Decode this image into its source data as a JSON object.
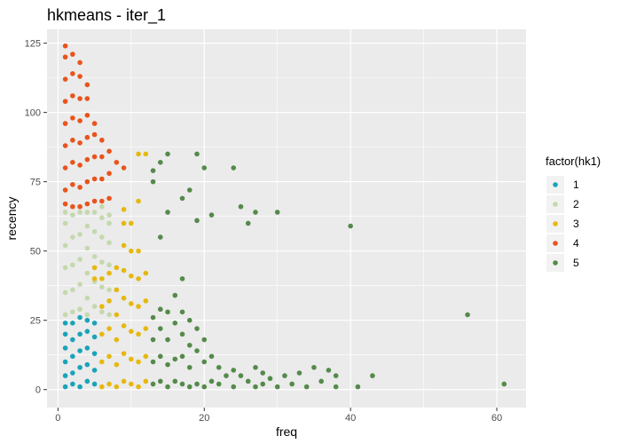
{
  "chart_data": {
    "type": "scatter",
    "title": "hkmeans - iter_1",
    "xlabel": "freq",
    "ylabel": "recency",
    "xlim": [
      -1.5,
      64.0
    ],
    "ylim": [
      -6.5,
      130.0
    ],
    "x_ticks": [
      0,
      20,
      40,
      60
    ],
    "y_ticks": [
      0,
      25,
      50,
      75,
      100,
      125
    ],
    "grid": true,
    "panel_background": "#ebebeb",
    "legend": {
      "title": "factor(hk1)",
      "position": "right"
    },
    "series": [
      {
        "name": "1",
        "color": "#19a3b8",
        "points": [
          [
            1,
            1
          ],
          [
            1,
            5
          ],
          [
            1,
            10
          ],
          [
            1,
            15
          ],
          [
            1,
            20
          ],
          [
            1,
            24
          ],
          [
            2,
            2
          ],
          [
            2,
            6
          ],
          [
            2,
            12
          ],
          [
            2,
            18
          ],
          [
            2,
            24
          ],
          [
            3,
            1
          ],
          [
            3,
            8
          ],
          [
            3,
            14
          ],
          [
            3,
            20
          ],
          [
            3,
            26
          ],
          [
            4,
            3
          ],
          [
            4,
            9
          ],
          [
            4,
            15
          ],
          [
            4,
            21
          ],
          [
            4,
            25
          ],
          [
            5,
            2
          ],
          [
            5,
            7
          ],
          [
            5,
            13
          ],
          [
            5,
            19
          ],
          [
            5,
            24
          ]
        ]
      },
      {
        "name": "2",
        "color": "#c4d8ad",
        "points": [
          [
            1,
            27
          ],
          [
            1,
            35
          ],
          [
            1,
            44
          ],
          [
            1,
            52
          ],
          [
            1,
            60
          ],
          [
            1,
            64
          ],
          [
            2,
            28
          ],
          [
            2,
            36
          ],
          [
            2,
            45
          ],
          [
            2,
            55
          ],
          [
            2,
            63
          ],
          [
            3,
            29
          ],
          [
            3,
            38
          ],
          [
            3,
            47
          ],
          [
            3,
            56
          ],
          [
            3,
            64
          ],
          [
            4,
            27
          ],
          [
            4,
            33
          ],
          [
            4,
            42
          ],
          [
            4,
            51
          ],
          [
            4,
            59
          ],
          [
            4,
            64
          ],
          [
            5,
            30
          ],
          [
            5,
            39
          ],
          [
            5,
            48
          ],
          [
            5,
            57
          ],
          [
            5,
            64
          ],
          [
            6,
            28
          ],
          [
            6,
            37
          ],
          [
            6,
            46
          ],
          [
            6,
            55
          ],
          [
            6,
            62
          ],
          [
            6,
            66
          ],
          [
            7,
            27
          ],
          [
            7,
            36
          ],
          [
            7,
            45
          ],
          [
            7,
            53
          ],
          [
            7,
            60
          ],
          [
            7,
            63
          ]
        ]
      },
      {
        "name": "3",
        "color": "#e6b80f",
        "points": [
          [
            5,
            40
          ],
          [
            5,
            44
          ],
          [
            6,
            1
          ],
          [
            6,
            10
          ],
          [
            6,
            20
          ],
          [
            6,
            30
          ],
          [
            6,
            40
          ],
          [
            7,
            2
          ],
          [
            7,
            12
          ],
          [
            7,
            22
          ],
          [
            7,
            32
          ],
          [
            7,
            42
          ],
          [
            8,
            1
          ],
          [
            8,
            9
          ],
          [
            8,
            18
          ],
          [
            8,
            27
          ],
          [
            8,
            36
          ],
          [
            8,
            44
          ],
          [
            9,
            3
          ],
          [
            9,
            13
          ],
          [
            9,
            23
          ],
          [
            9,
            33
          ],
          [
            9,
            43
          ],
          [
            9,
            52
          ],
          [
            9,
            60
          ],
          [
            9,
            65
          ],
          [
            10,
            2
          ],
          [
            10,
            11
          ],
          [
            10,
            21
          ],
          [
            10,
            31
          ],
          [
            10,
            41
          ],
          [
            10,
            50
          ],
          [
            10,
            60
          ],
          [
            11,
            1
          ],
          [
            11,
            10
          ],
          [
            11,
            20
          ],
          [
            11,
            30
          ],
          [
            11,
            40
          ],
          [
            11,
            50
          ],
          [
            11,
            68
          ],
          [
            11,
            85
          ],
          [
            12,
            3
          ],
          [
            12,
            12
          ],
          [
            12,
            22
          ],
          [
            12,
            32
          ],
          [
            12,
            42
          ],
          [
            12,
            85
          ]
        ]
      },
      {
        "name": "4",
        "color": "#e8541c",
        "points": [
          [
            1,
            67
          ],
          [
            1,
            72
          ],
          [
            1,
            80
          ],
          [
            1,
            88
          ],
          [
            1,
            96
          ],
          [
            1,
            104
          ],
          [
            1,
            112
          ],
          [
            1,
            120
          ],
          [
            1,
            124
          ],
          [
            2,
            66
          ],
          [
            2,
            74
          ],
          [
            2,
            82
          ],
          [
            2,
            90
          ],
          [
            2,
            98
          ],
          [
            2,
            106
          ],
          [
            2,
            114
          ],
          [
            2,
            121
          ],
          [
            3,
            66
          ],
          [
            3,
            73
          ],
          [
            3,
            81
          ],
          [
            3,
            89
          ],
          [
            3,
            97
          ],
          [
            3,
            105
          ],
          [
            3,
            113
          ],
          [
            3,
            118
          ],
          [
            4,
            67
          ],
          [
            4,
            75
          ],
          [
            4,
            83
          ],
          [
            4,
            91
          ],
          [
            4,
            99
          ],
          [
            4,
            105
          ],
          [
            4,
            110
          ],
          [
            5,
            68
          ],
          [
            5,
            76
          ],
          [
            5,
            84
          ],
          [
            5,
            92
          ],
          [
            5,
            96
          ],
          [
            6,
            68
          ],
          [
            6,
            76
          ],
          [
            6,
            84
          ],
          [
            6,
            90
          ],
          [
            7,
            69
          ],
          [
            7,
            78
          ],
          [
            7,
            86
          ],
          [
            8,
            82
          ],
          [
            9,
            80
          ]
        ]
      },
      {
        "name": "5",
        "color": "#548a4a",
        "points": [
          [
            13,
            2
          ],
          [
            13,
            10
          ],
          [
            13,
            18
          ],
          [
            13,
            26
          ],
          [
            13,
            75
          ],
          [
            13,
            79
          ],
          [
            14,
            3
          ],
          [
            14,
            12
          ],
          [
            14,
            22
          ],
          [
            14,
            29
          ],
          [
            14,
            55
          ],
          [
            14,
            82
          ],
          [
            15,
            1
          ],
          [
            15,
            9
          ],
          [
            15,
            18
          ],
          [
            15,
            28
          ],
          [
            15,
            64
          ],
          [
            15,
            85
          ],
          [
            16,
            3
          ],
          [
            16,
            11
          ],
          [
            16,
            24
          ],
          [
            16,
            34
          ],
          [
            17,
            2
          ],
          [
            17,
            12
          ],
          [
            17,
            20
          ],
          [
            17,
            28
          ],
          [
            17,
            40
          ],
          [
            17,
            69
          ],
          [
            18,
            1
          ],
          [
            18,
            8
          ],
          [
            18,
            16
          ],
          [
            18,
            25
          ],
          [
            18,
            72
          ],
          [
            19,
            2
          ],
          [
            19,
            14
          ],
          [
            19,
            22
          ],
          [
            19,
            61
          ],
          [
            19,
            85
          ],
          [
            20,
            1
          ],
          [
            20,
            10
          ],
          [
            20,
            18
          ],
          [
            20,
            80
          ],
          [
            21,
            3
          ],
          [
            21,
            12
          ],
          [
            21,
            63
          ],
          [
            22,
            2
          ],
          [
            22,
            8
          ],
          [
            23,
            5
          ],
          [
            24,
            1
          ],
          [
            24,
            7
          ],
          [
            24,
            80
          ],
          [
            25,
            5
          ],
          [
            25,
            66
          ],
          [
            26,
            3
          ],
          [
            26,
            60
          ],
          [
            27,
            1
          ],
          [
            27,
            8
          ],
          [
            27,
            64
          ],
          [
            28,
            2
          ],
          [
            28,
            6
          ],
          [
            29,
            4
          ],
          [
            30,
            1
          ],
          [
            30,
            64
          ],
          [
            31,
            5
          ],
          [
            32,
            2
          ],
          [
            33,
            6
          ],
          [
            34,
            1
          ],
          [
            35,
            8
          ],
          [
            36,
            3
          ],
          [
            37,
            7
          ],
          [
            38,
            1
          ],
          [
            38,
            5
          ],
          [
            40,
            59
          ],
          [
            41,
            1
          ],
          [
            43,
            5
          ],
          [
            56,
            27
          ],
          [
            61,
            2
          ]
        ]
      }
    ]
  }
}
